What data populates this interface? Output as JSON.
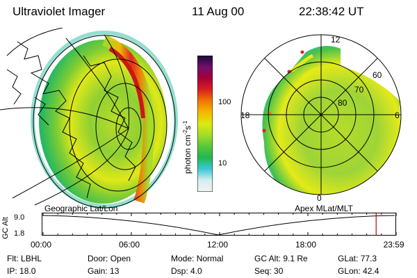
{
  "header": {
    "title": "Ultraviolet Imager",
    "date": "11 Aug 00",
    "time": "22:38:42 UT"
  },
  "colorbar": {
    "label": "photon cm",
    "label_exp1": "-2",
    "label_mid": "s",
    "label_exp2": "-1",
    "ticks": [
      {
        "label": "100",
        "value": 100
      },
      {
        "label": "10",
        "value": 10
      }
    ],
    "colors": [
      "#f2f2f2",
      "#d8eef0",
      "#3cc8d8",
      "#22b850",
      "#56c83a",
      "#a4dc28",
      "#dcea12",
      "#f4b800",
      "#f07800",
      "#d82020",
      "#a80038",
      "#70106a",
      "#1a0a3a"
    ]
  },
  "geographic_panel": {
    "caption": "Geographic Lat/Lon"
  },
  "apex_panel": {
    "caption": "Apex MLat/MLT",
    "mlt_labels": {
      "top": "12",
      "left": "18",
      "right": "6",
      "bottom": "0"
    },
    "lat_labels": [
      "60",
      "70",
      "80"
    ]
  },
  "timeline": {
    "ylabel": "GC Alt",
    "y_ticks": [
      "9.0",
      "1.8"
    ],
    "x_ticks": [
      "00:00",
      "06:00",
      "12:00",
      "18:00",
      "23:59"
    ],
    "x_values_hours": [
      0,
      6,
      12,
      18,
      23.98
    ],
    "current_time_hours": 22.64,
    "marker_color": "#cc0000"
  },
  "info": {
    "flt_label": "Flt:",
    "flt_value": "LBHL",
    "ip_label": "IP:",
    "ip_value": "18.0",
    "door_label": "Door:",
    "door_value": "Open",
    "gain_label": "Gain:",
    "gain_value": "13",
    "mode_label": "Mode:",
    "mode_value": "Normal",
    "dsp_label": "Dsp:",
    "dsp_value": "4.0",
    "gcalt_label": "GC Alt:",
    "gcalt_value": "9.1 Re",
    "seq_label": "Seq:",
    "seq_value": "30",
    "glat_label": "GLat:",
    "glat_value": "77.3",
    "glon_label": "GLon:",
    "glon_value": "42.4"
  }
}
